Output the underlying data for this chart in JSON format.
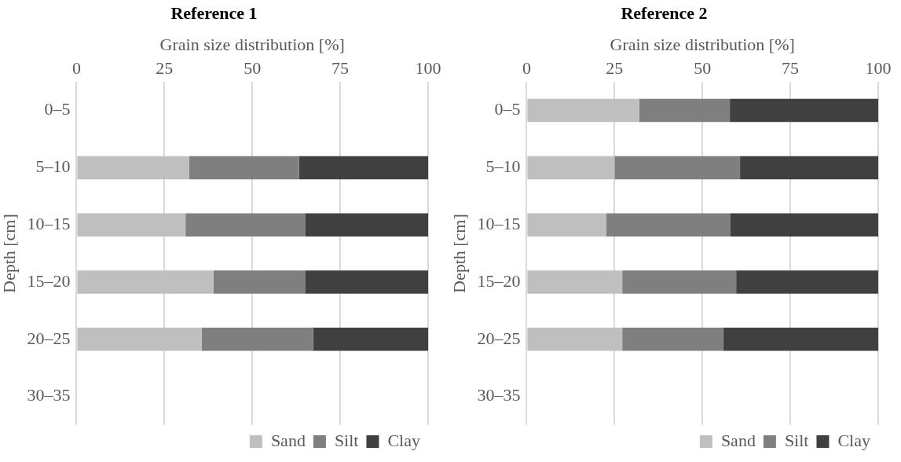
{
  "chart_data": [
    {
      "type": "bar",
      "title": "Reference 1",
      "orientation": "horizontal",
      "stacked": true,
      "xlabel": "Grain size distribution [%]",
      "ylabel": "Depth [cm]",
      "categories": [
        "0–5",
        "5–10",
        "10–15",
        "15–20",
        "20–25",
        "30–35"
      ],
      "xlim": [
        0,
        100
      ],
      "xticks": [
        0,
        25,
        50,
        75,
        100
      ],
      "grid": "x",
      "legend": "bottom",
      "series": [
        {
          "name": "Sand",
          "color": "#bfbfbf",
          "values": [
            null,
            32,
            31,
            39,
            35.6,
            null
          ]
        },
        {
          "name": "Silt",
          "color": "#7f7f7f",
          "values": [
            null,
            31.3,
            34,
            26,
            31.7,
            null
          ]
        },
        {
          "name": "Clay",
          "color": "#404040",
          "values": [
            null,
            36.7,
            35,
            35,
            32.7,
            null
          ]
        }
      ]
    },
    {
      "type": "bar",
      "title": "Reference 2",
      "orientation": "horizontal",
      "stacked": true,
      "xlabel": "Grain size distribution [%]",
      "ylabel": "Depth [cm]",
      "categories": [
        "0–5",
        "5–10",
        "10–15",
        "15–20",
        "20–25",
        "30–35"
      ],
      "xlim": [
        0,
        100
      ],
      "xticks": [
        0,
        25,
        50,
        75,
        100
      ],
      "grid": "x",
      "legend": "bottom",
      "series": [
        {
          "name": "Sand",
          "color": "#bfbfbf",
          "values": [
            32,
            25,
            22.7,
            27.2,
            27.2,
            null
          ]
        },
        {
          "name": "Silt",
          "color": "#7f7f7f",
          "values": [
            25.8,
            35.7,
            35.3,
            32.4,
            28.7,
            null
          ]
        },
        {
          "name": "Clay",
          "color": "#404040",
          "values": [
            42.2,
            39.3,
            42,
            40.4,
            44.1,
            null
          ]
        }
      ]
    }
  ]
}
